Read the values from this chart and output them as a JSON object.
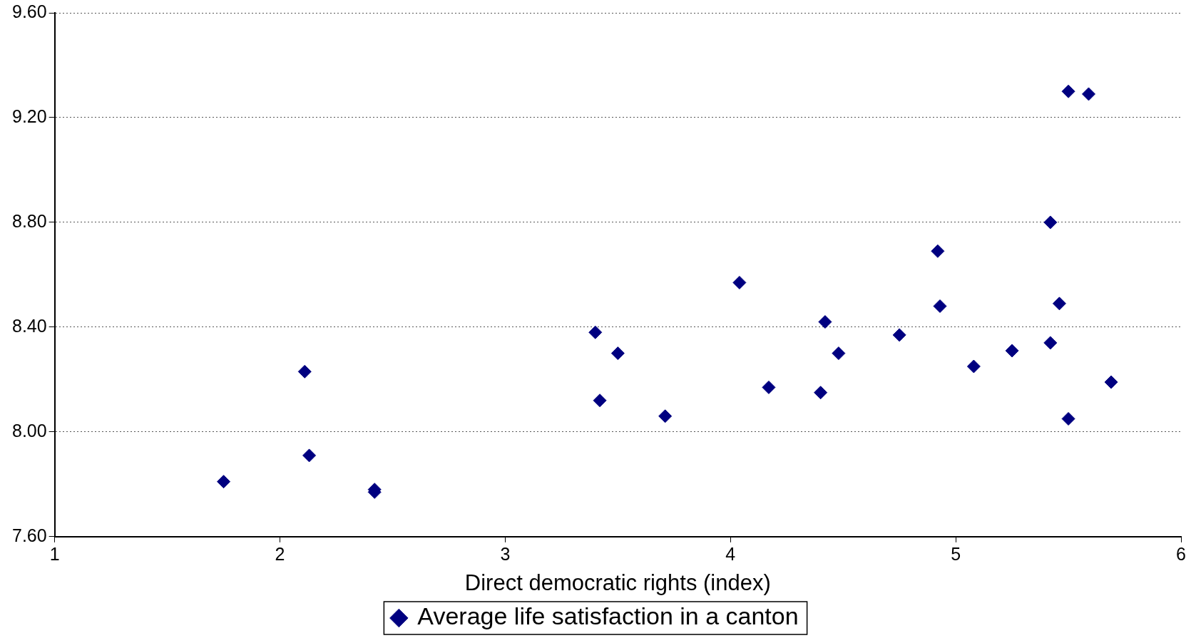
{
  "chart_data": {
    "type": "scatter",
    "xlabel": "Direct democratic rights (index)",
    "series": [
      {
        "name": "Average life satisfaction in a canton",
        "color": "#000080",
        "x": [
          1.75,
          2.11,
          2.13,
          2.42,
          2.42,
          3.4,
          3.42,
          3.5,
          3.71,
          4.04,
          4.17,
          4.4,
          4.42,
          4.48,
          4.75,
          4.92,
          4.93,
          5.08,
          5.25,
          5.42,
          5.42,
          5.46,
          5.5,
          5.59,
          5.5,
          5.69
        ],
        "values": [
          7.81,
          8.23,
          7.91,
          7.78,
          7.77,
          8.38,
          8.12,
          8.3,
          8.06,
          8.57,
          8.17,
          8.15,
          8.42,
          8.3,
          8.37,
          8.69,
          8.48,
          8.25,
          8.31,
          8.8,
          8.34,
          8.49,
          9.3,
          9.29,
          8.05,
          8.19
        ]
      }
    ],
    "xlim": [
      1,
      6
    ],
    "xticks": [
      1,
      2,
      3,
      4,
      5,
      6
    ],
    "ylim": [
      7.6,
      9.6
    ],
    "yticks": [
      {
        "value": 7.6,
        "label": "7.60"
      },
      {
        "value": 8.0,
        "label": "8.00"
      },
      {
        "value": 8.4,
        "label": "8.40"
      },
      {
        "value": 8.8,
        "label": "8.80"
      },
      {
        "value": 9.2,
        "label": "9.20"
      },
      {
        "value": 9.6,
        "label": "9.60"
      }
    ],
    "grid": "y",
    "legend": "bottom",
    "marker": "diamond"
  }
}
